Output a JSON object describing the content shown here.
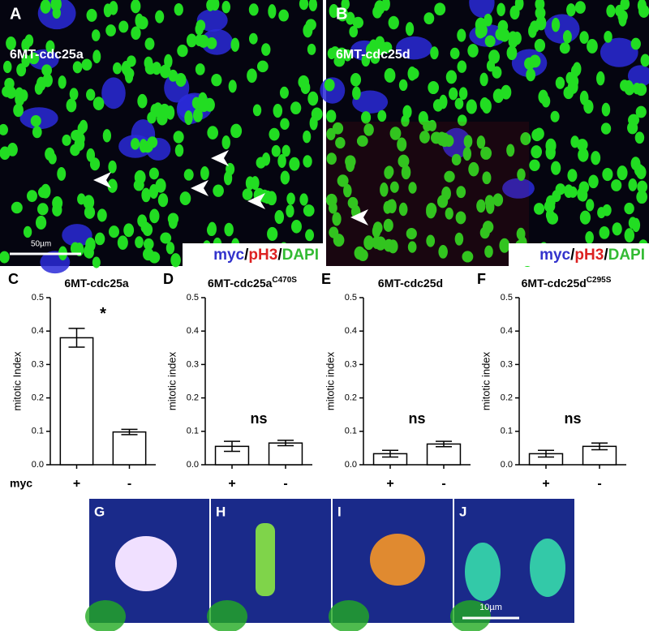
{
  "images": [
    {
      "letter": "A",
      "label": "6MT-cdc25a",
      "scale": "50µm",
      "stain": [
        "myc",
        "/",
        "pH3",
        "/",
        "DAPI"
      ]
    },
    {
      "letter": "B",
      "label": "6MT-cdc25d",
      "stain": [
        "myc",
        "/",
        "pH3",
        "/",
        "DAPI"
      ]
    }
  ],
  "chart_data": [
    {
      "type": "bar",
      "letter": "C",
      "title": "6MT-cdc25a",
      "ylabel": "mitotic Index",
      "xlabel": "myc",
      "annotation": "*",
      "categories": [
        "+",
        "-"
      ],
      "values": [
        0.38,
        0.098
      ],
      "errors": [
        0.028,
        0.008
      ],
      "color": "#ffffff",
      "ylim": [
        0,
        0.5
      ],
      "yticks": [
        {
          "value": 0,
          "label": "0.0"
        },
        0.1,
        0.2,
        0.3,
        0.4,
        0.5
      ]
    },
    {
      "type": "bar",
      "letter": "D",
      "title": "6MT-cdc25a",
      "title_sup": "C470S",
      "ylabel": "mitotic index",
      "annotation": "ns",
      "categories": [
        "+",
        "-"
      ],
      "values": [
        0.055,
        0.065
      ],
      "errors": [
        0.015,
        0.008
      ],
      "color": "#ffffff",
      "ylim": [
        0,
        0.5
      ],
      "yticks": [
        {
          "value": 0,
          "label": "0.0"
        },
        0.1,
        0.2,
        0.3,
        0.4,
        0.5
      ]
    },
    {
      "type": "bar",
      "letter": "E",
      "title": "6MT-cdc25d",
      "ylabel": "mitotic index",
      "annotation": "ns",
      "categories": [
        "+",
        "-"
      ],
      "values": [
        0.033,
        0.062
      ],
      "errors": [
        0.01,
        0.008
      ],
      "color": "#ffffff",
      "ylim": [
        0,
        0.5
      ],
      "yticks": [
        {
          "value": 0,
          "label": "0.0"
        },
        0.1,
        0.2,
        0.3,
        0.4,
        0.5
      ]
    },
    {
      "type": "bar",
      "letter": "F",
      "title": "6MT-cdc25d",
      "title_sup": "C295S",
      "ylabel": "mitotic index",
      "annotation": "ns",
      "categories": [
        "+",
        "-"
      ],
      "values": [
        0.033,
        0.055
      ],
      "errors": [
        0.01,
        0.01
      ],
      "color": "#ffffff",
      "ylim": [
        0,
        0.5
      ],
      "yticks": [
        {
          "value": 0,
          "label": "0.0"
        },
        0.1,
        0.2,
        0.3,
        0.4,
        0.5
      ]
    }
  ],
  "bottom": {
    "letters": [
      "G",
      "H",
      "I",
      "J"
    ],
    "scale": "10µm"
  }
}
